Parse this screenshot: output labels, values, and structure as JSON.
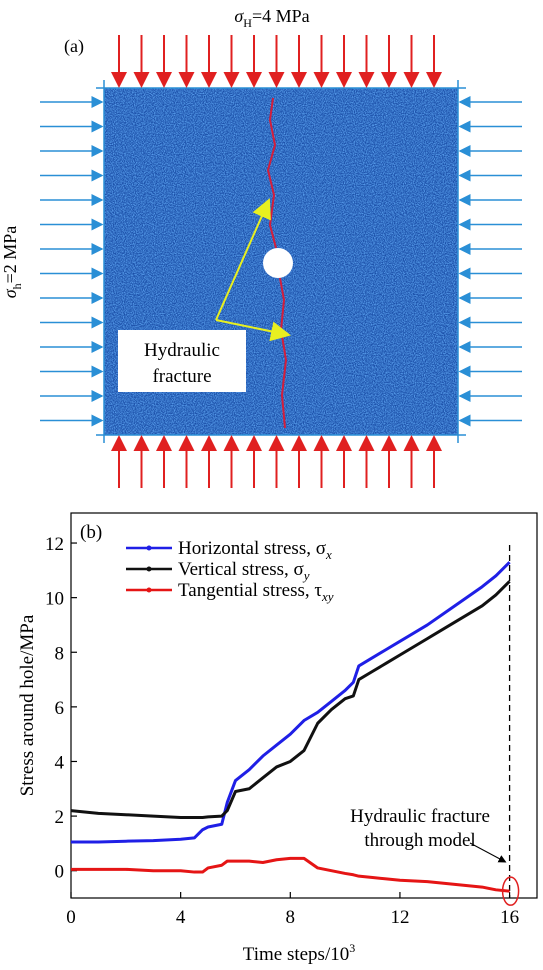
{
  "panel_a": {
    "label": "(a)",
    "sigma_H": {
      "symbol": "σ",
      "subscript": "H",
      "rest": "=4 MPa"
    },
    "sigma_h": {
      "symbol": "σ",
      "subscript": "h",
      "rest": "=2 MPa"
    },
    "callout": [
      "Hydraulic",
      "fracture"
    ]
  },
  "chart_data": {
    "type": "line",
    "panel_label": "(b)",
    "ylabel": "Stress around hole/MPa",
    "xlabel": {
      "text": "Time steps/10",
      "superscript": "3"
    },
    "x": [
      0,
      1,
      2,
      3,
      4,
      4.5,
      4.8,
      5,
      5.5,
      5.7,
      6,
      6.5,
      7,
      7.5,
      8,
      8.5,
      9,
      9.5,
      10,
      10.3,
      10.5,
      11,
      11.5,
      12,
      13,
      14,
      15,
      15.5,
      16
    ],
    "series": [
      {
        "name": "Horizontal stress, σ",
        "subscript": "x",
        "color": "#1f1fe6",
        "values": [
          1.05,
          1.05,
          1.08,
          1.1,
          1.15,
          1.2,
          1.5,
          1.6,
          1.7,
          2.5,
          3.3,
          3.7,
          4.2,
          4.6,
          5.0,
          5.5,
          5.8,
          6.2,
          6.6,
          6.9,
          7.5,
          7.8,
          8.1,
          8.4,
          9.0,
          9.7,
          10.4,
          10.8,
          11.3
        ]
      },
      {
        "name": "Vertical stress, σ",
        "subscript": "y",
        "color": "#111111",
        "values": [
          2.2,
          2.1,
          2.05,
          2.0,
          1.95,
          1.95,
          1.95,
          1.97,
          2.0,
          2.2,
          2.9,
          3.0,
          3.4,
          3.8,
          4.0,
          4.4,
          5.4,
          5.9,
          6.3,
          6.4,
          7.0,
          7.3,
          7.6,
          7.9,
          8.5,
          9.1,
          9.7,
          10.1,
          10.6
        ]
      },
      {
        "name": "Tangential stress, τ",
        "subscript": "xy",
        "color": "#e51515",
        "values": [
          0.05,
          0.05,
          0.05,
          0,
          0,
          -0.05,
          -0.05,
          0.1,
          0.2,
          0.35,
          0.35,
          0.35,
          0.3,
          0.4,
          0.45,
          0.45,
          0.1,
          0,
          -0.1,
          -0.15,
          -0.2,
          -0.25,
          -0.3,
          -0.35,
          -0.4,
          -0.5,
          -0.6,
          -0.7,
          -0.75
        ]
      }
    ],
    "xlim": [
      0,
      17
    ],
    "xticks": [
      0,
      4,
      8,
      12,
      16
    ],
    "ylim": [
      -1,
      13.1
    ],
    "yticks": [
      0,
      2,
      4,
      6,
      8,
      10,
      12
    ],
    "vline_x": 16,
    "annotation": [
      "Hydraulic fracture",
      "through model"
    ]
  }
}
